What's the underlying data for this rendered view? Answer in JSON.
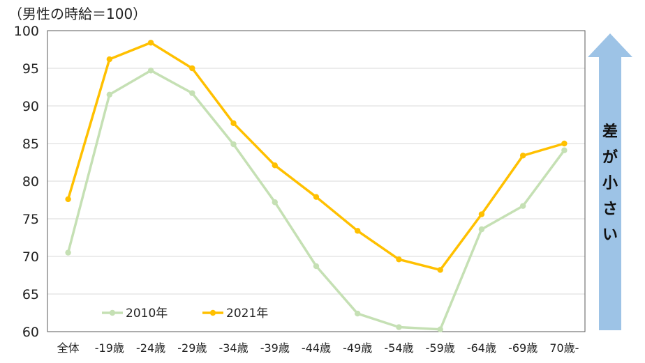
{
  "chart_data": {
    "type": "line",
    "unit_note": "（男性の時給＝100）",
    "categories": [
      "全体",
      "-19歳",
      "-24歳",
      "-29歳",
      "-34歳",
      "-39歳",
      "-44歳",
      "-49歳",
      "-54歳",
      "-59歳",
      "-64歳",
      "-69歳",
      "70歳-"
    ],
    "series": [
      {
        "name": "2010年",
        "color": "#c5e0b4",
        "values": [
          70.5,
          91.5,
          94.7,
          91.7,
          84.9,
          77.2,
          68.7,
          62.4,
          60.6,
          60.3,
          73.6,
          76.7,
          84.1
        ]
      },
      {
        "name": "2021年",
        "color": "#ffc000",
        "values": [
          77.6,
          96.2,
          98.4,
          95.0,
          87.7,
          82.1,
          77.9,
          73.4,
          69.6,
          68.2,
          75.6,
          83.4,
          85.0
        ]
      }
    ],
    "ylim": [
      60,
      100
    ],
    "yticks": [
      60,
      65,
      70,
      75,
      80,
      85,
      90,
      95,
      100
    ],
    "grid": true,
    "legend_position": "bottom-left",
    "annotation": {
      "text": "差が小さい",
      "chars": [
        "差",
        "が",
        "小",
        "さ",
        "い"
      ],
      "arrow_color": "#9dc3e6"
    }
  }
}
